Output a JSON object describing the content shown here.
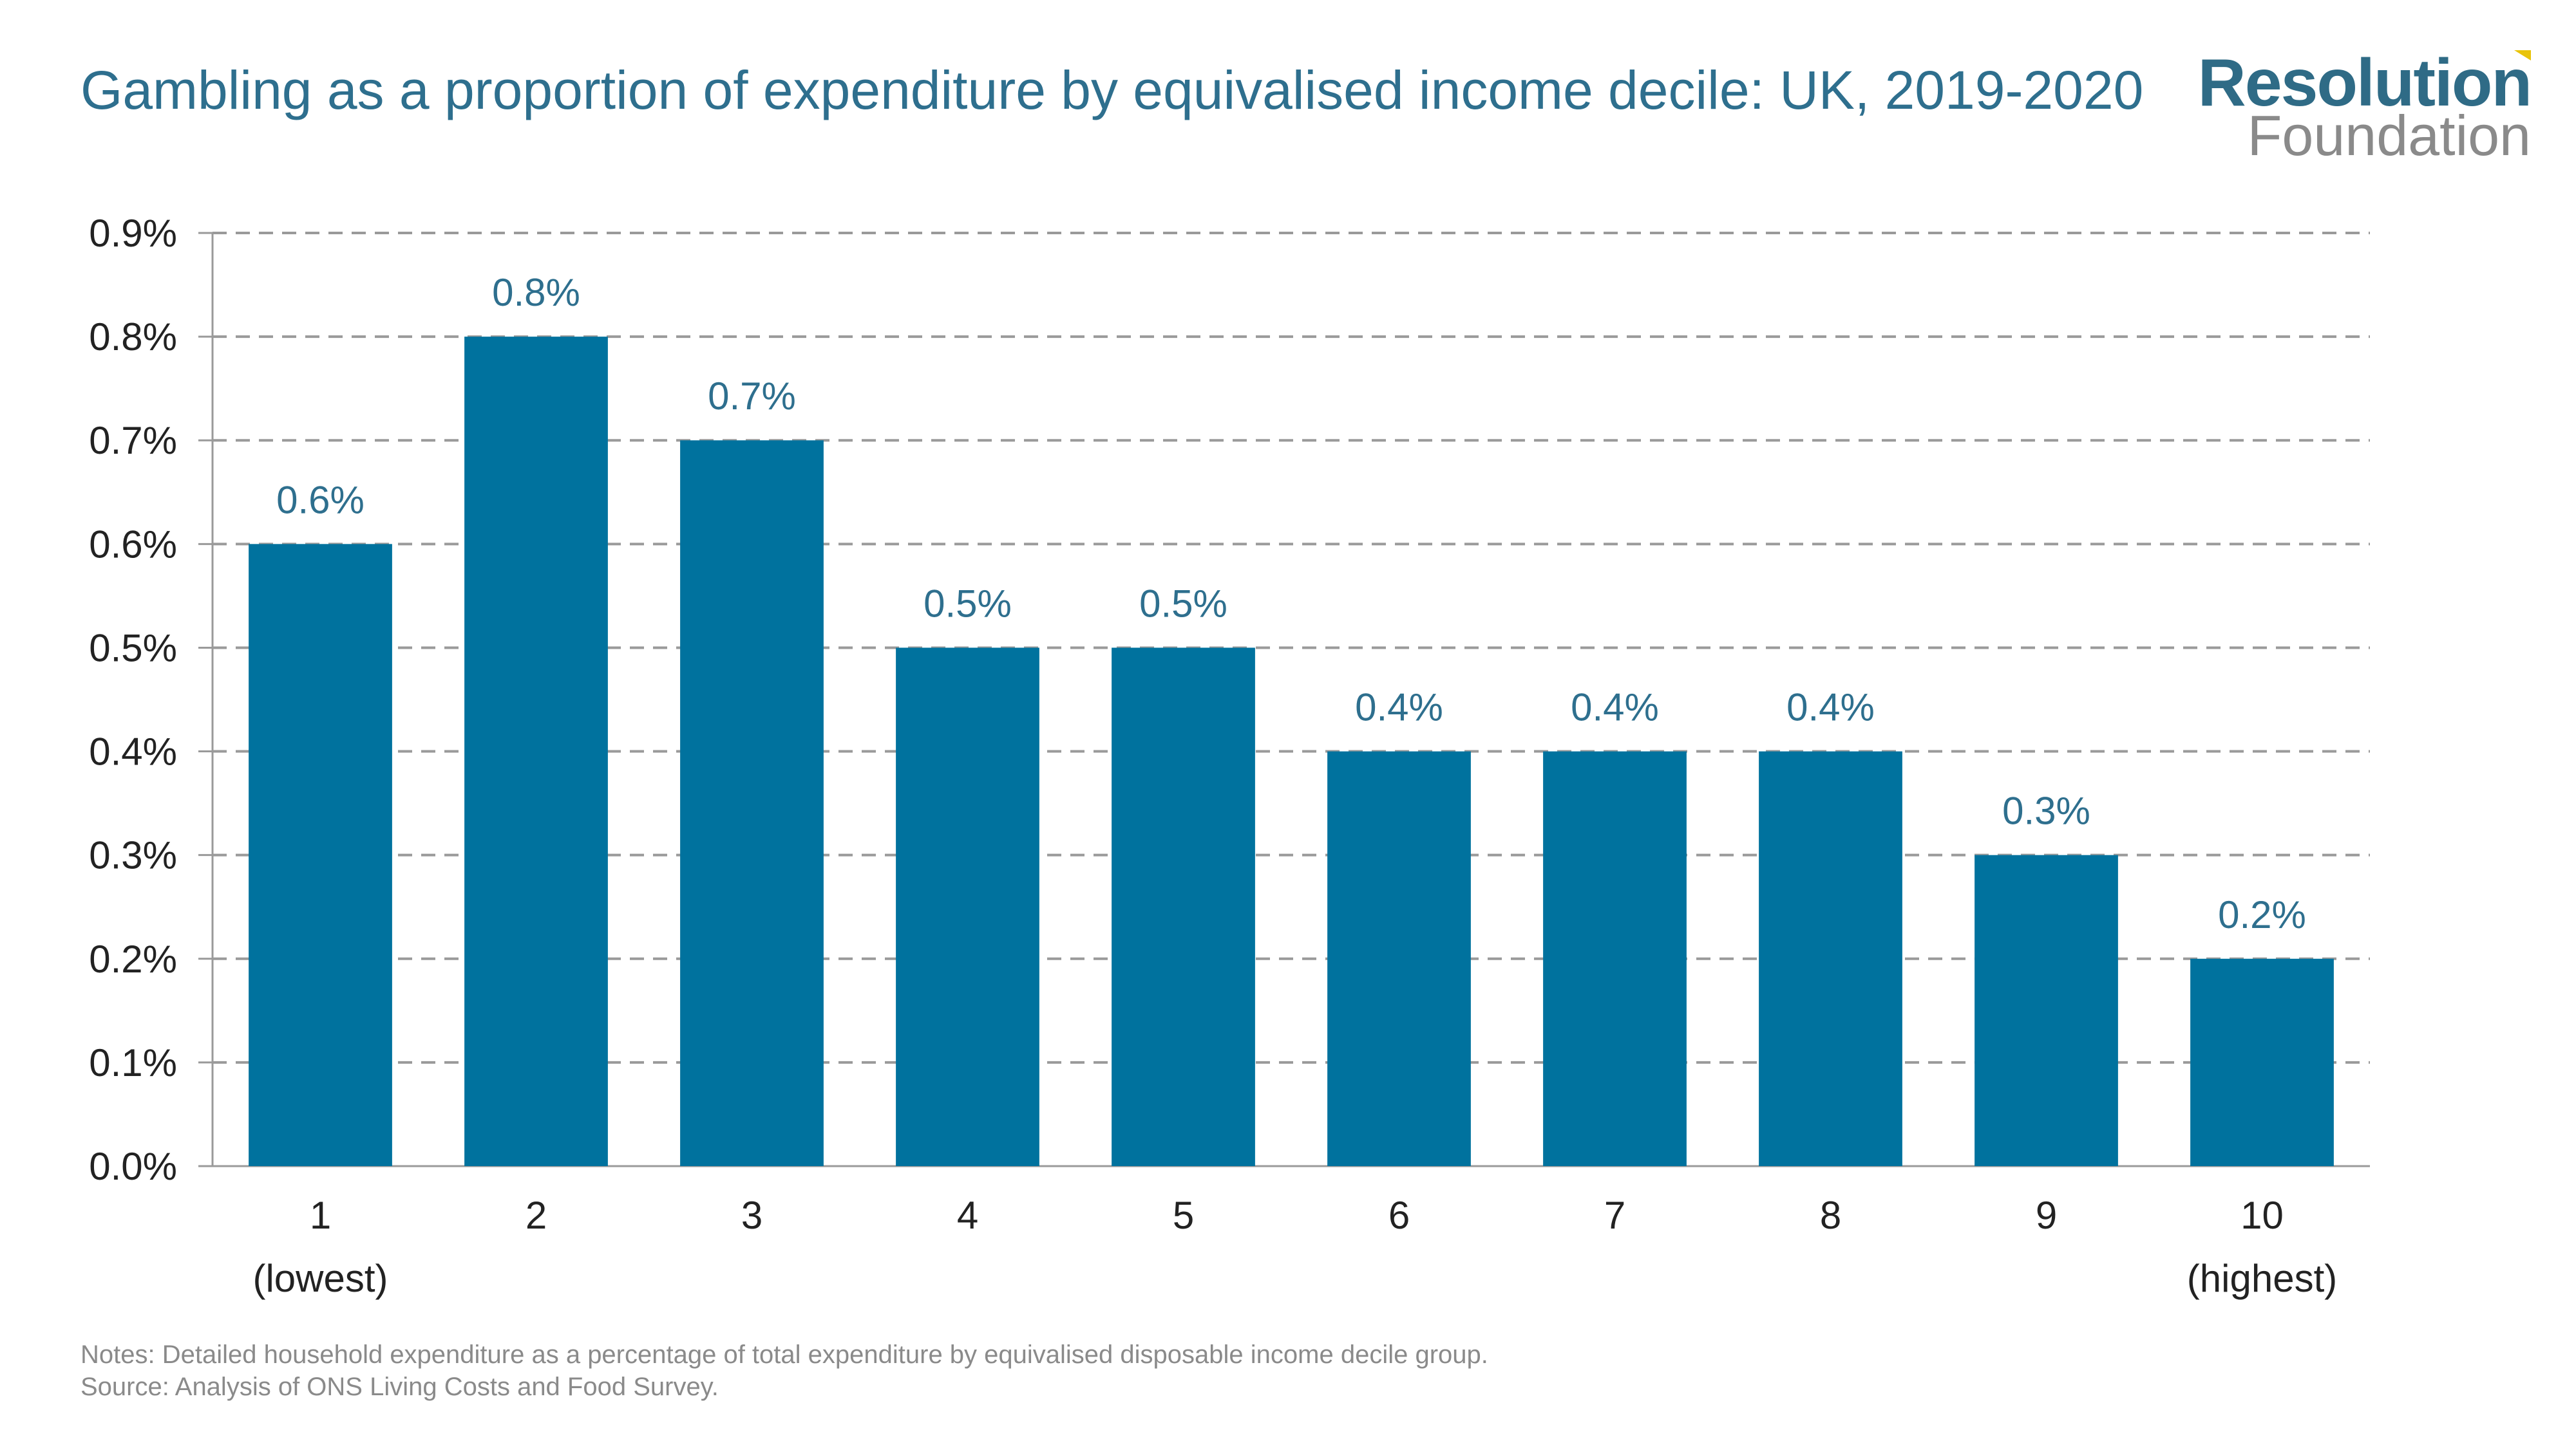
{
  "header": {
    "title": "Gambling as a proportion of expenditure by equivalised income decile: UK, 2019-2020",
    "brand_top": "Resolution",
    "brand_bottom": "Foundation",
    "brand_accent_color": "#e9c40b"
  },
  "chart_data": {
    "type": "bar",
    "categories": [
      "1",
      "2",
      "3",
      "4",
      "5",
      "6",
      "7",
      "8",
      "9",
      "10"
    ],
    "category_sublabels": [
      "(lowest)",
      "",
      "",
      "",
      "",
      "",
      "",
      "",
      "",
      "(highest)"
    ],
    "values": [
      0.6,
      0.8,
      0.7,
      0.5,
      0.5,
      0.4,
      0.4,
      0.4,
      0.3,
      0.2
    ],
    "data_labels": [
      "0.6%",
      "0.8%",
      "0.7%",
      "0.5%",
      "0.5%",
      "0.4%",
      "0.4%",
      "0.4%",
      "0.3%",
      "0.2%"
    ],
    "yticks": [
      "0.0%",
      "0.1%",
      "0.2%",
      "0.3%",
      "0.4%",
      "0.5%",
      "0.6%",
      "0.7%",
      "0.8%",
      "0.9%"
    ],
    "ylim": [
      0,
      0.9
    ],
    "grid": true,
    "bar_color": "#00729e",
    "label_color": "#2e6f8e"
  },
  "notes": {
    "line1": "Notes: Detailed household expenditure as a percentage of total expenditure by equivalised disposable income decile group.",
    "line2": "Source: Analysis of ONS Living Costs and Food Survey."
  }
}
